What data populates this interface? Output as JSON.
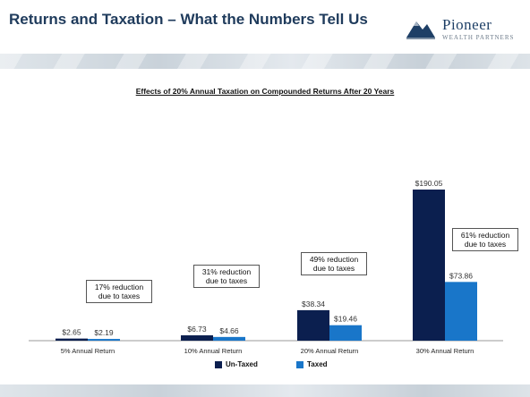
{
  "slide": {
    "title": "Returns and Taxation – What the Numbers Tell Us",
    "logo": {
      "name": "Pioneer",
      "tagline": "WEALTH PARTNERS",
      "icon": "mountain-logo-icon"
    }
  },
  "callouts": [
    "17% reduction due to taxes",
    "31% reduction due to taxes",
    "49% reduction due to taxes",
    "61% reduction due to taxes"
  ],
  "colors": {
    "untaxed": "#0b1f4f",
    "taxed": "#1976c9",
    "title": "#1f3b5c"
  },
  "chart_data": {
    "type": "bar",
    "title": "Effects of 20% Annual Taxation on Compounded Returns After 20 Years",
    "categories": [
      "5% Annual Return",
      "10% Annual Return",
      "20% Annual Return",
      "30% Annual Return"
    ],
    "series": [
      {
        "name": "Un-Taxed",
        "values": [
          2.65,
          6.73,
          38.34,
          190.05
        ],
        "labels": [
          "$2.65",
          "$6.73",
          "$38.34",
          "$190.05"
        ]
      },
      {
        "name": "Taxed",
        "values": [
          2.19,
          4.66,
          19.46,
          73.86
        ],
        "labels": [
          "$2.19",
          "$4.66",
          "$19.46",
          "$73.86"
        ]
      }
    ],
    "ylim": [
      0,
      190.05
    ],
    "grid": false,
    "legend": "bottom"
  }
}
